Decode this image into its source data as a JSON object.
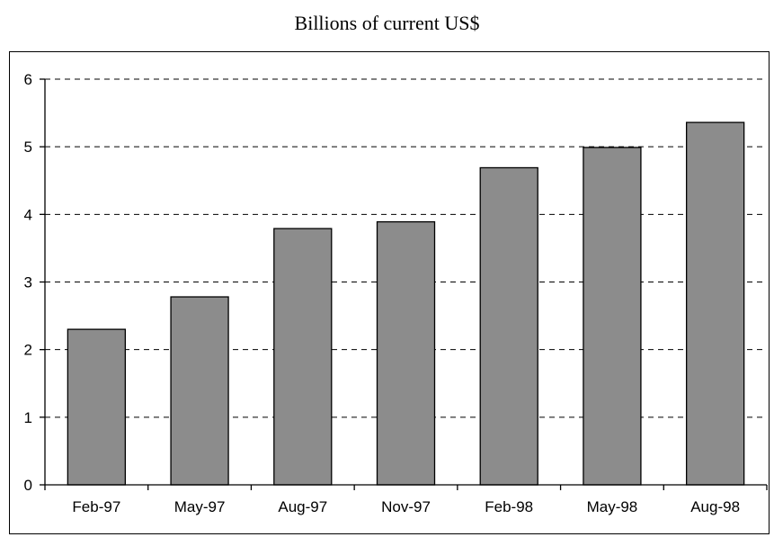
{
  "chart_data": {
    "type": "bar",
    "title": "Billions of current US$",
    "xlabel": "",
    "ylabel": "",
    "categories": [
      "Feb-97",
      "May-97",
      "Aug-97",
      "Nov-97",
      "Feb-98",
      "May-98",
      "Aug-98"
    ],
    "values": [
      2.3,
      2.78,
      3.79,
      3.89,
      4.69,
      4.99,
      5.36
    ],
    "ylim": [
      0,
      6
    ],
    "yticks": [
      "0",
      "1",
      "2",
      "3",
      "4",
      "5",
      "6"
    ],
    "grid": "horizontal-dashed",
    "legend": "none",
    "colors": {
      "bar_fill": "#8c8c8c",
      "bar_stroke": "#000000",
      "grid": "#000000",
      "axis": "#000000"
    }
  }
}
